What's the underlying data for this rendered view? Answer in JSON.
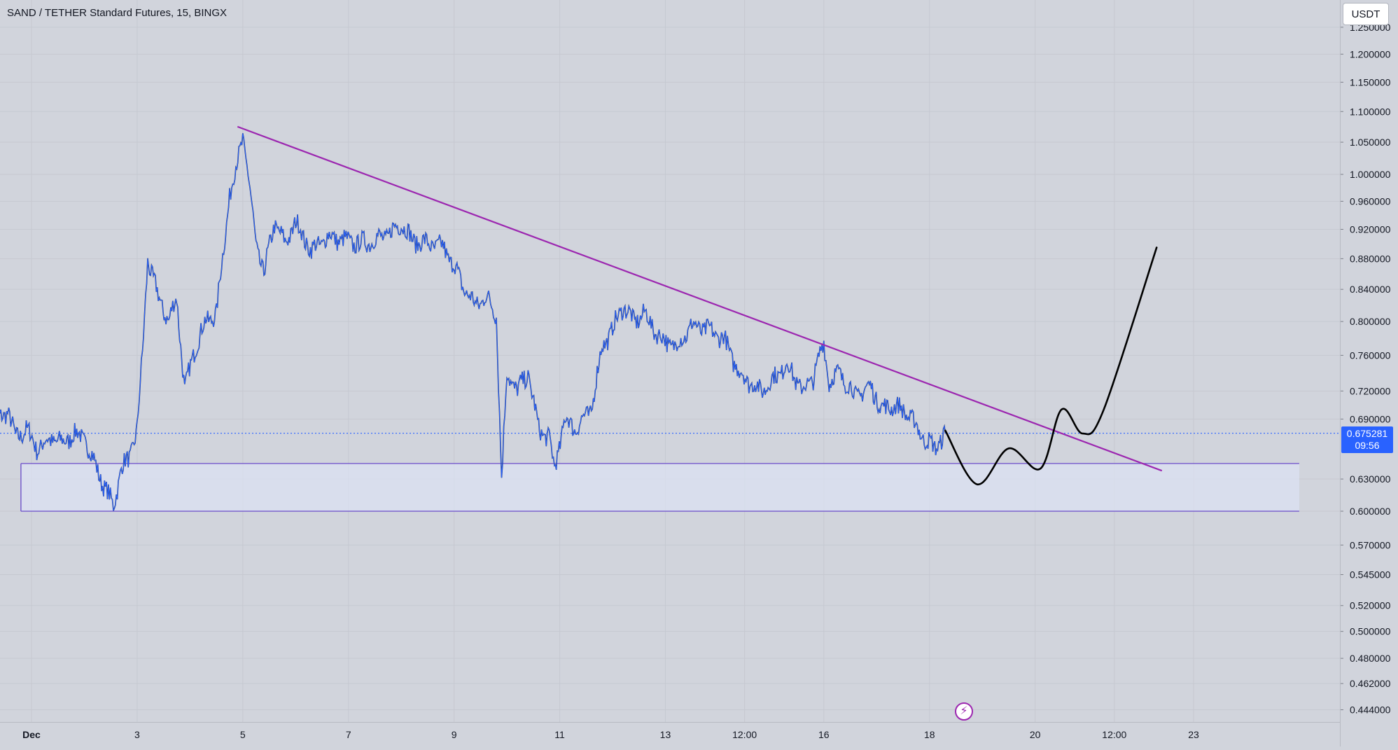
{
  "header": {
    "symbol_title": "SAND / TETHER Standard Futures, 15, BINGX",
    "currency_label": "USDT"
  },
  "last_price": {
    "value": "0.675281",
    "countdown": "09:56"
  },
  "replay": {
    "icon": "lightning-icon",
    "glyph": "⚡"
  },
  "colors": {
    "background": "#d1d4dc",
    "price_line": "#2962ff",
    "candle_dark": "#131722",
    "trendline": "#9c27b0",
    "zone_border": "#6a4cc9",
    "zone_fill": "#dde3f4",
    "projection": "#000000",
    "badge": "#2962ff"
  },
  "chart_data": {
    "type": "line",
    "instrument": "SAND / TETHER Standard Futures",
    "interval": "15",
    "exchange": "BINGX",
    "x_axis": {
      "unit": "days (December)",
      "range": [
        0,
        23.6
      ],
      "tick_labels": [
        {
          "label": "Dec",
          "x": 1
        },
        {
          "label": "3",
          "x": 3
        },
        {
          "label": "5",
          "x": 5
        },
        {
          "label": "7",
          "x": 7
        },
        {
          "label": "9",
          "x": 9
        },
        {
          "label": "11",
          "x": 11
        },
        {
          "label": "13",
          "x": 13
        },
        {
          "label": "12:00",
          "x": 14.5
        },
        {
          "label": "16",
          "x": 16
        },
        {
          "label": "18",
          "x": 18
        },
        {
          "label": "20",
          "x": 20
        },
        {
          "label": "12:00",
          "x": 21.5
        },
        {
          "label": "23",
          "x": 23
        }
      ]
    },
    "y_axis": {
      "scale": "log",
      "range": [
        0.43,
        1.28
      ],
      "tick_labels": [
        "1.250000",
        "1.200000",
        "1.150000",
        "1.100000",
        "1.050000",
        "1.000000",
        "0.960000",
        "0.920000",
        "0.880000",
        "0.840000",
        "0.800000",
        "0.760000",
        "0.720000",
        "0.690000",
        "0.630000",
        "0.600000",
        "0.570000",
        "0.545000",
        "0.520000",
        "0.500000",
        "0.480000",
        "0.462000",
        "0.444000"
      ]
    },
    "grid": true,
    "price_series": {
      "name": "SANDUSDT",
      "x": [
        0.2,
        0.4,
        0.55,
        0.7,
        0.9,
        1.1,
        1.25,
        1.4,
        1.6,
        1.8,
        2.0,
        2.2,
        2.4,
        2.55,
        2.7,
        2.85,
        3.0,
        3.1,
        3.2,
        3.4,
        3.6,
        3.75,
        3.9,
        4.1,
        4.3,
        4.5,
        4.6,
        4.75,
        4.85,
        5.0,
        5.1,
        5.25,
        5.4,
        5.6,
        5.8,
        6.0,
        6.3,
        6.6,
        6.9,
        7.2,
        7.5,
        7.8,
        8.0,
        8.2,
        8.5,
        8.8,
        9.0,
        9.2,
        9.4,
        9.6,
        9.8,
        9.9,
        10.0,
        10.2,
        10.4,
        10.6,
        10.8,
        10.9,
        11.1,
        11.3,
        11.6,
        11.8,
        12.0,
        12.2,
        12.4,
        12.6,
        12.9,
        13.2,
        13.5,
        13.8,
        14.1,
        14.4,
        14.6,
        14.8,
        15.0,
        15.3,
        15.6,
        15.8,
        16.0,
        16.1,
        16.3,
        16.6,
        16.9,
        17.1,
        17.3,
        17.6,
        17.9,
        18.1,
        18.3
      ],
      "y": [
        0.66,
        0.69,
        0.7,
        0.67,
        0.68,
        0.66,
        0.665,
        0.67,
        0.665,
        0.675,
        0.67,
        0.645,
        0.62,
        0.605,
        0.64,
        0.65,
        0.68,
        0.76,
        0.88,
        0.83,
        0.8,
        0.83,
        0.72,
        0.77,
        0.8,
        0.81,
        0.87,
        0.97,
        1.0,
        1.06,
        1.0,
        0.9,
        0.86,
        0.93,
        0.9,
        0.93,
        0.89,
        0.91,
        0.905,
        0.9,
        0.905,
        0.915,
        0.93,
        0.905,
        0.9,
        0.895,
        0.87,
        0.84,
        0.82,
        0.83,
        0.81,
        0.63,
        0.74,
        0.72,
        0.74,
        0.68,
        0.67,
        0.64,
        0.69,
        0.68,
        0.7,
        0.77,
        0.79,
        0.82,
        0.8,
        0.81,
        0.78,
        0.77,
        0.795,
        0.79,
        0.78,
        0.74,
        0.73,
        0.72,
        0.73,
        0.75,
        0.72,
        0.735,
        0.775,
        0.73,
        0.74,
        0.715,
        0.725,
        0.7,
        0.705,
        0.695,
        0.67,
        0.66,
        0.675
      ]
    },
    "last_price": 0.675281,
    "annotations": [
      {
        "type": "trendline",
        "name": "descending resistance",
        "points": [
          {
            "x": 4.9,
            "y": 1.075
          },
          {
            "x": 22.4,
            "y": 0.638
          }
        ]
      },
      {
        "type": "rectangle",
        "name": "support zone",
        "x_range": [
          0.8,
          25.0
        ],
        "y_range": [
          0.6,
          0.645
        ]
      },
      {
        "type": "path",
        "name": "projected path",
        "points": [
          {
            "x": 18.3,
            "y": 0.678
          },
          {
            "x": 18.9,
            "y": 0.625
          },
          {
            "x": 19.5,
            "y": 0.66
          },
          {
            "x": 20.1,
            "y": 0.64
          },
          {
            "x": 20.5,
            "y": 0.7
          },
          {
            "x": 20.9,
            "y": 0.675
          },
          {
            "x": 21.3,
            "y": 0.7
          },
          {
            "x": 22.3,
            "y": 0.895
          }
        ]
      }
    ]
  }
}
